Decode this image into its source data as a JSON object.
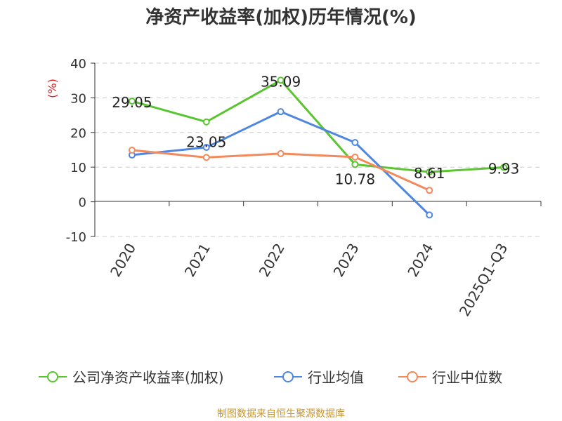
{
  "chart_data": {
    "type": "line",
    "title": "净资产收益率(加权)历年情况(%)",
    "ylabel": "(%)",
    "xlabel": "",
    "categories": [
      "2020",
      "2021",
      "2022",
      "2023",
      "2024",
      "2025Q1-Q3"
    ],
    "yticks": [
      "40",
      "30",
      "20",
      "10",
      "0",
      "-10"
    ],
    "ylim": [
      -10,
      40
    ],
    "grid": true,
    "legend_position": "bottom",
    "series": [
      {
        "name": "公司净资产收益率(加权)",
        "color": "#5ac531",
        "values": [
          29.05,
          23.05,
          35.09,
          10.78,
          8.61,
          9.93
        ],
        "labels": [
          "29.05",
          "23.05",
          "35.09",
          "10.78",
          "8.61",
          "9.93"
        ]
      },
      {
        "name": "行业均值",
        "color": "#4f86e0",
        "values": [
          13.5,
          15.7,
          26.0,
          17.1,
          -3.8,
          null
        ]
      },
      {
        "name": "行业中位数",
        "color": "#f28a5c",
        "values": [
          14.9,
          12.8,
          13.9,
          12.9,
          3.3,
          null
        ]
      }
    ]
  },
  "footer": {
    "source": "制图数据来自恒生聚源数据库"
  }
}
